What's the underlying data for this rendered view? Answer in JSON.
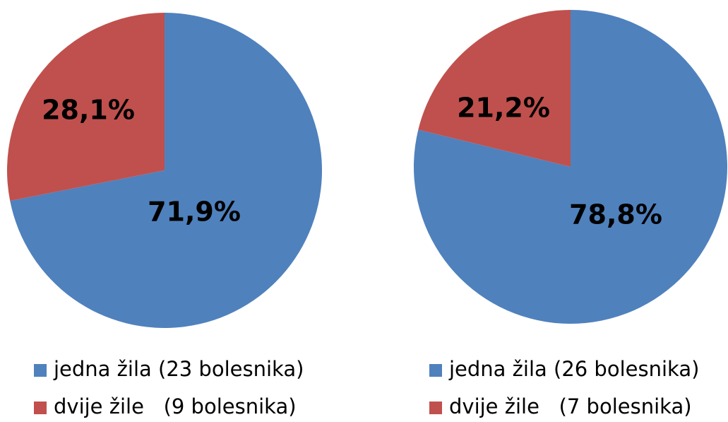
{
  "chart_data": [
    {
      "type": "pie",
      "categories": [
        "jedna žila (23 bolesnika)",
        "dvije žile   (9 bolesnika)"
      ],
      "values": [
        71.9,
        28.1
      ],
      "value_labels": [
        "71,9%",
        "28,1%"
      ],
      "colors": [
        "#4f81bd",
        "#c0504d"
      ]
    },
    {
      "type": "pie",
      "categories": [
        "jedna žila (26 bolesnika)",
        "dvije žile   (7 bolesnika)"
      ],
      "values": [
        78.8,
        21.2
      ],
      "value_labels": [
        "78,8%",
        "21,2%"
      ],
      "colors": [
        "#4f81bd",
        "#c0504d"
      ]
    }
  ]
}
